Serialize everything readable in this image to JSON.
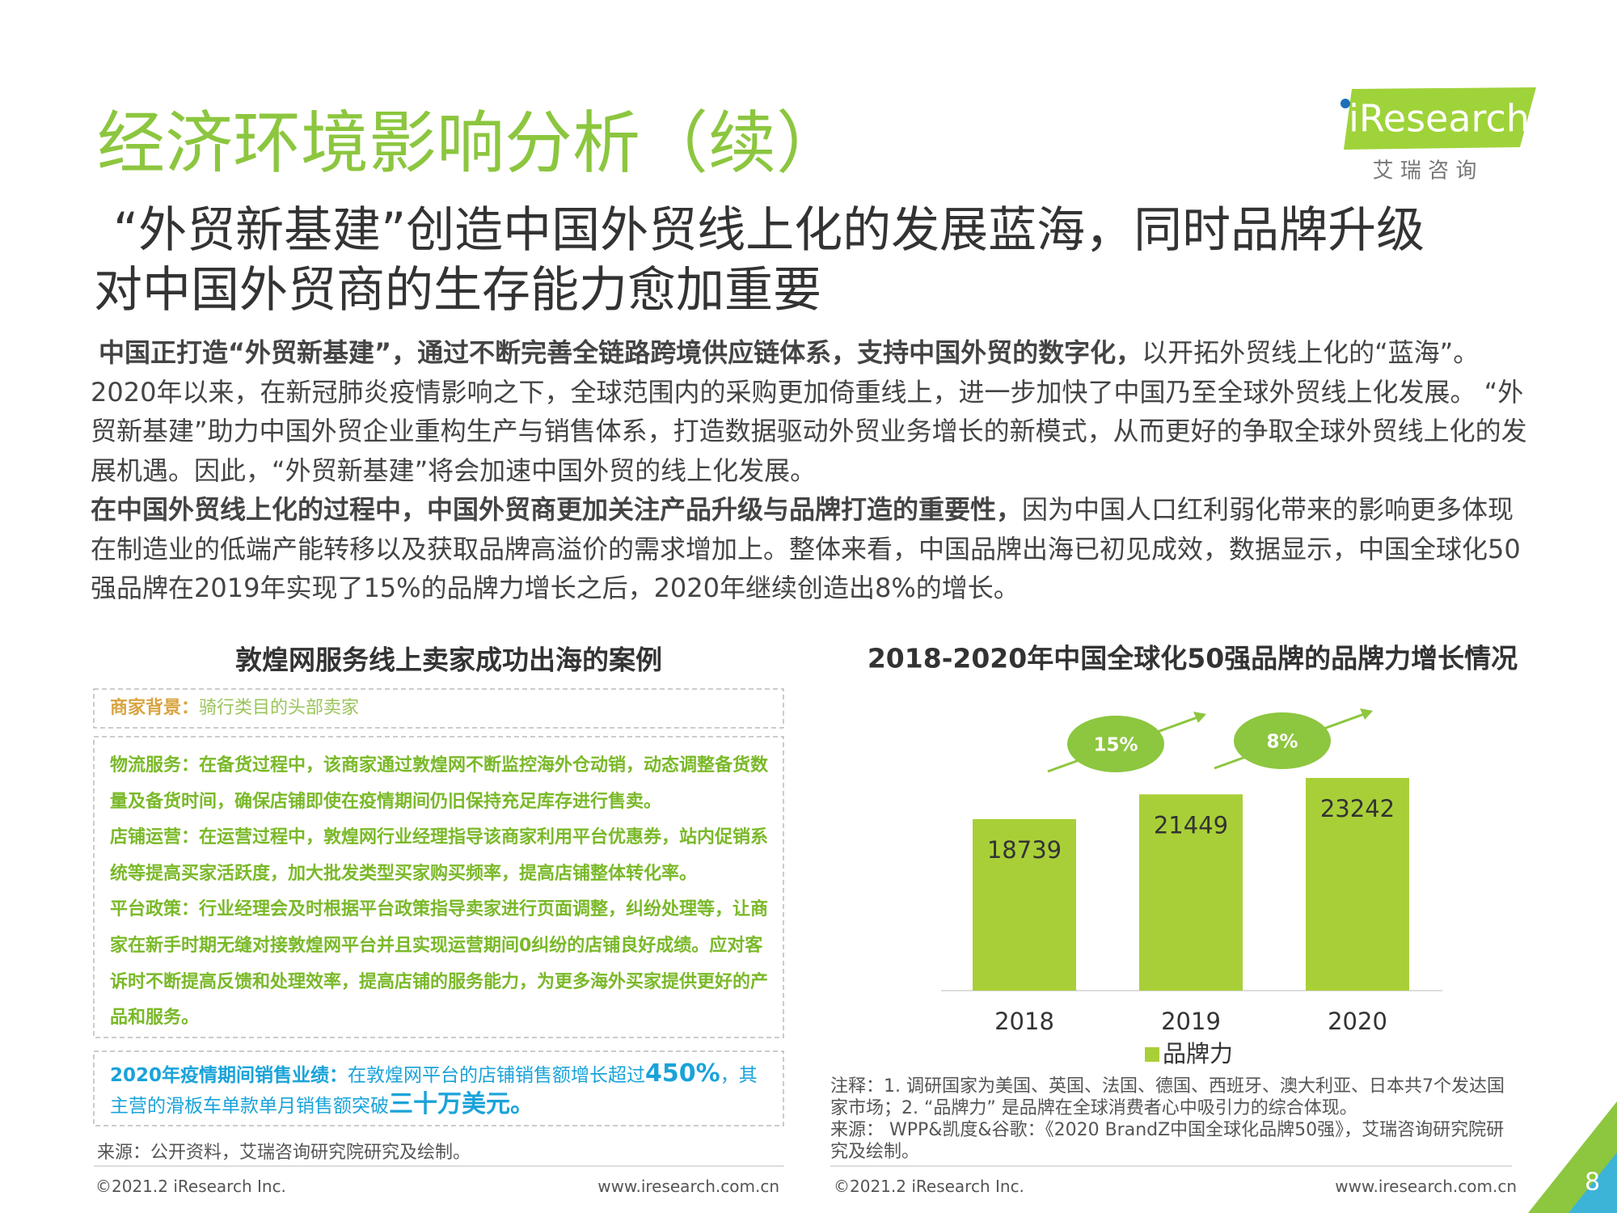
{
  "header": {
    "title": "经济环境影响分析（续）",
    "logo": "iResearch",
    "logo_sub": "艾 瑞 咨 询"
  },
  "headline": [
    "“外贸新基建”创造中国外贸线上化的发展蓝海，同时品牌升级",
    "对中国外贸商的生存能力愈加重要"
  ],
  "body": [
    {
      "bold": "中国正打造“外贸新基建”，通过不断完善全链路跨境供应链体系，支持中国外贸的数字化，",
      "text": "以开拓外贸线上化的“蓝海”。2020年以来，在新冠肺炎疫情影响之下，全球范围内的采购更加倚重线上，进一步加快了中国乃至全球外贸线上化发展。 “外贸新基建”助力中国外贸企业重构生产与销售体系，打造数据驱动外贸业务增长的新模式，从而更好的争取全球外贸线上化的发展机遇。因此，“外贸新基建”将会加速中国外贸的线上化发展。"
    },
    {
      "bold": "在中国外贸线上化的过程中，中国外贸商更加关注产品升级与品牌打造的重要性，",
      "text": "因为中国人口红利弱化带来的影响更多体现在制造业的低端产能转移以及获取品牌高溢价的需求增加上。整体来看，中国品牌出海已初见成效，数据显示，中国全球化50强品牌在2019年实现了15%的品牌力增长之后，2020年继续创造出8%的增长。"
    }
  ],
  "case": {
    "title": "敦煌网服务线上卖家成功出海的案例",
    "background": {
      "label": "商家背景：",
      "text": "骑行类目的头部卖家"
    },
    "items": [
      {
        "label": "物流服务：",
        "text": "在备货过程中，该商家通过敦煌网不断监控海外仓动销，动态调整备货数量及备货时间，确保店铺即使在疫情期间仍旧保持充足库存进行售卖。"
      },
      {
        "label": "店铺运营：",
        "text": "在运营过程中，敦煌网行业经理指导该商家利用平台优惠券，站内促销系统等提高买家活跃度，加大批发类型买家购买频率，提高店铺整体转化率。"
      },
      {
        "label": "平台政策：",
        "text": "行业经理会及时根据平台政策指导卖家进行页面调整，纠纷处理等，让商家在新手时期无缝对接敦煌网平台并且实现运营期间0纠纷的店铺良好成绩。应对客诉时不断提高反馈和处理效率，提高店铺的服务能力，为更多海外买家提供更好的产品和服务。"
      }
    ],
    "result": {
      "label": "2020年疫情期间销售业绩：",
      "text1": "在敦煌网平台的店铺销售额增长超过",
      "highlight1": "450%",
      "text2": "，其主营的滑板车单款单月销售额突破",
      "highlight2": "三十万美元。"
    },
    "source": "来源：公开资料，艾瑞咨询研究院研究及绘制。"
  },
  "chart_data": {
    "type": "bar",
    "title": "2018-2020年中国全球化50强品牌的品牌力增长情况",
    "categories": [
      "2018",
      "2019",
      "2020"
    ],
    "series": [
      {
        "name": "品牌力",
        "color": "#a9cf38",
        "values": [
          18739,
          21449,
          23242
        ]
      }
    ],
    "annotations": [
      "15%",
      "8%"
    ]
  },
  "notes": [
    "注释：1. 调研国家为美国、英国、法国、德国、西班牙、澳大利亚、日本共7个发达国家市场；2. “品牌力” 是品牌在全球消费者心中吸引力的综合体现。",
    "来源： WPP&凯度&谷歌：《2020 BrandZ中国全球化品牌50强》，艾瑞咨询研究院研究及绘制。"
  ],
  "footer": {
    "copyright": "©2021.2 iResearch Inc.",
    "url": "www.iresearch.com.cn",
    "page": "8"
  }
}
